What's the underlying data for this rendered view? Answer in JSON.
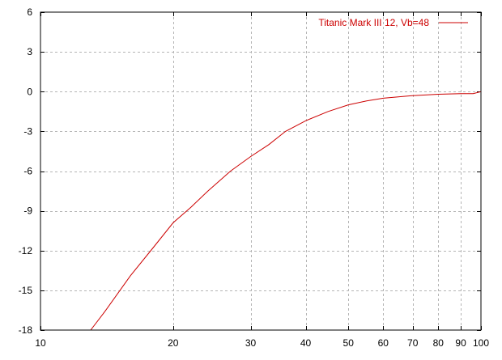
{
  "chart_data": {
    "type": "line",
    "x_scale": "log",
    "xlim": [
      10,
      100
    ],
    "ylim": [
      -18,
      6
    ],
    "x_ticks": [
      10,
      20,
      30,
      40,
      50,
      60,
      70,
      80,
      90,
      100
    ],
    "y_ticks": [
      6,
      3,
      0,
      -3,
      -6,
      -9,
      -12,
      -15,
      -18
    ],
    "grid": true,
    "legend_position": "top-right",
    "series": [
      {
        "name": "Titanic Mark III 12, Vb=48",
        "color": "#cc0000",
        "x": [
          13,
          14,
          16,
          18,
          20,
          22,
          24,
          27,
          30,
          33,
          36,
          40,
          45,
          50,
          55,
          60,
          70,
          80,
          90,
          96,
          100
        ],
        "y": [
          -18,
          -16.6,
          -13.9,
          -11.8,
          -9.9,
          -8.7,
          -7.5,
          -6.0,
          -4.9,
          -4.0,
          -3.0,
          -2.2,
          -1.5,
          -1.0,
          -0.7,
          -0.5,
          -0.3,
          -0.2,
          -0.15,
          -0.15,
          0
        ]
      }
    ]
  }
}
